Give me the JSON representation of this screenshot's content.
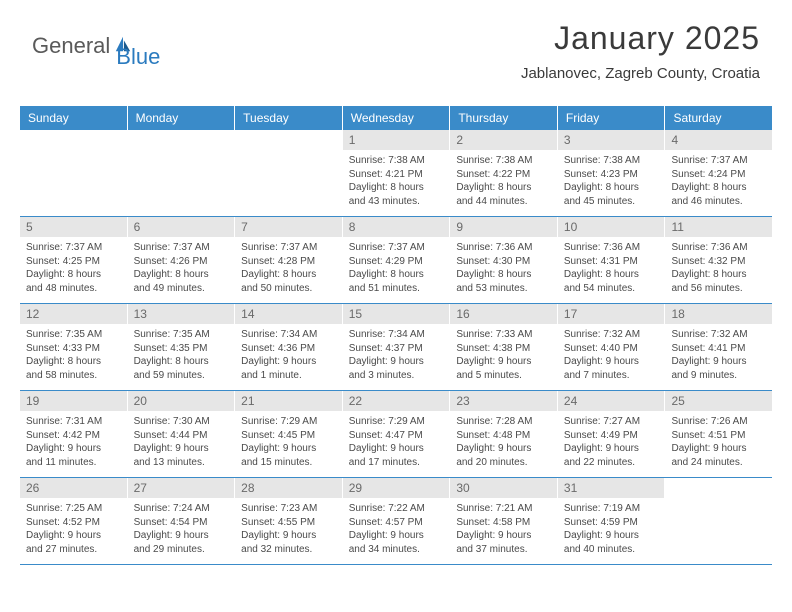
{
  "logo": {
    "text1": "General",
    "text2": "Blue"
  },
  "title": "January 2025",
  "location": "Jablanovec, Zagreb County, Croatia",
  "colors": {
    "header_bg": "#3a8bc9",
    "header_fg": "#ffffff",
    "daynum_bg": "#e6e6e6",
    "daynum_fg": "#6a6a6a",
    "text": "#4a4a4a",
    "border": "#3a8bc9",
    "logo_gray": "#5a5a5a",
    "logo_blue": "#2b7bbf"
  },
  "dayHeaders": [
    "Sunday",
    "Monday",
    "Tuesday",
    "Wednesday",
    "Thursday",
    "Friday",
    "Saturday"
  ],
  "weeks": [
    [
      null,
      null,
      null,
      {
        "n": "1",
        "sunrise": "7:38 AM",
        "sunset": "4:21 PM",
        "dayH": "8",
        "dayM": "43"
      },
      {
        "n": "2",
        "sunrise": "7:38 AM",
        "sunset": "4:22 PM",
        "dayH": "8",
        "dayM": "44"
      },
      {
        "n": "3",
        "sunrise": "7:38 AM",
        "sunset": "4:23 PM",
        "dayH": "8",
        "dayM": "45"
      },
      {
        "n": "4",
        "sunrise": "7:37 AM",
        "sunset": "4:24 PM",
        "dayH": "8",
        "dayM": "46"
      }
    ],
    [
      {
        "n": "5",
        "sunrise": "7:37 AM",
        "sunset": "4:25 PM",
        "dayH": "8",
        "dayM": "48"
      },
      {
        "n": "6",
        "sunrise": "7:37 AM",
        "sunset": "4:26 PM",
        "dayH": "8",
        "dayM": "49"
      },
      {
        "n": "7",
        "sunrise": "7:37 AM",
        "sunset": "4:28 PM",
        "dayH": "8",
        "dayM": "50"
      },
      {
        "n": "8",
        "sunrise": "7:37 AM",
        "sunset": "4:29 PM",
        "dayH": "8",
        "dayM": "51"
      },
      {
        "n": "9",
        "sunrise": "7:36 AM",
        "sunset": "4:30 PM",
        "dayH": "8",
        "dayM": "53"
      },
      {
        "n": "10",
        "sunrise": "7:36 AM",
        "sunset": "4:31 PM",
        "dayH": "8",
        "dayM": "54"
      },
      {
        "n": "11",
        "sunrise": "7:36 AM",
        "sunset": "4:32 PM",
        "dayH": "8",
        "dayM": "56"
      }
    ],
    [
      {
        "n": "12",
        "sunrise": "7:35 AM",
        "sunset": "4:33 PM",
        "dayH": "8",
        "dayM": "58"
      },
      {
        "n": "13",
        "sunrise": "7:35 AM",
        "sunset": "4:35 PM",
        "dayH": "8",
        "dayM": "59"
      },
      {
        "n": "14",
        "sunrise": "7:34 AM",
        "sunset": "4:36 PM",
        "dayH": "9",
        "dayM": "1",
        "singular": true
      },
      {
        "n": "15",
        "sunrise": "7:34 AM",
        "sunset": "4:37 PM",
        "dayH": "9",
        "dayM": "3"
      },
      {
        "n": "16",
        "sunrise": "7:33 AM",
        "sunset": "4:38 PM",
        "dayH": "9",
        "dayM": "5"
      },
      {
        "n": "17",
        "sunrise": "7:32 AM",
        "sunset": "4:40 PM",
        "dayH": "9",
        "dayM": "7"
      },
      {
        "n": "18",
        "sunrise": "7:32 AM",
        "sunset": "4:41 PM",
        "dayH": "9",
        "dayM": "9"
      }
    ],
    [
      {
        "n": "19",
        "sunrise": "7:31 AM",
        "sunset": "4:42 PM",
        "dayH": "9",
        "dayM": "11"
      },
      {
        "n": "20",
        "sunrise": "7:30 AM",
        "sunset": "4:44 PM",
        "dayH": "9",
        "dayM": "13"
      },
      {
        "n": "21",
        "sunrise": "7:29 AM",
        "sunset": "4:45 PM",
        "dayH": "9",
        "dayM": "15"
      },
      {
        "n": "22",
        "sunrise": "7:29 AM",
        "sunset": "4:47 PM",
        "dayH": "9",
        "dayM": "17"
      },
      {
        "n": "23",
        "sunrise": "7:28 AM",
        "sunset": "4:48 PM",
        "dayH": "9",
        "dayM": "20"
      },
      {
        "n": "24",
        "sunrise": "7:27 AM",
        "sunset": "4:49 PM",
        "dayH": "9",
        "dayM": "22"
      },
      {
        "n": "25",
        "sunrise": "7:26 AM",
        "sunset": "4:51 PM",
        "dayH": "9",
        "dayM": "24"
      }
    ],
    [
      {
        "n": "26",
        "sunrise": "7:25 AM",
        "sunset": "4:52 PM",
        "dayH": "9",
        "dayM": "27"
      },
      {
        "n": "27",
        "sunrise": "7:24 AM",
        "sunset": "4:54 PM",
        "dayH": "9",
        "dayM": "29"
      },
      {
        "n": "28",
        "sunrise": "7:23 AM",
        "sunset": "4:55 PM",
        "dayH": "9",
        "dayM": "32"
      },
      {
        "n": "29",
        "sunrise": "7:22 AM",
        "sunset": "4:57 PM",
        "dayH": "9",
        "dayM": "34"
      },
      {
        "n": "30",
        "sunrise": "7:21 AM",
        "sunset": "4:58 PM",
        "dayH": "9",
        "dayM": "37"
      },
      {
        "n": "31",
        "sunrise": "7:19 AM",
        "sunset": "4:59 PM",
        "dayH": "9",
        "dayM": "40"
      },
      null
    ]
  ],
  "labels": {
    "sunrise": "Sunrise:",
    "sunset": "Sunset:",
    "daylight_prefix": "Daylight:",
    "hours_word": "hours",
    "and_word": "and",
    "minutes_word": "minutes.",
    "minute_word": "minute."
  }
}
